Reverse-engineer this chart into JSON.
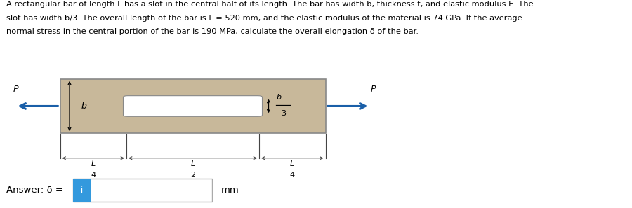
{
  "text_line1": "A rectangular bar of length L has a slot in the central half of its length. The bar has width b, thickness t, and elastic modulus E. The",
  "text_line2": "slot has width b/3. The overall length of the bar is L = 520 mm, and the elastic modulus of the material is 74 GPa. If the average",
  "text_line3": "normal stress in the central portion of the bar is 190 MPa, calculate the overall elongation δ of the bar.",
  "bar_fill_color": "#c8b89a",
  "bar_edge_color": "#888888",
  "slot_fill_color": "#ffffff",
  "arrow_color": "#1a5fa8",
  "dim_color": "#444444",
  "answer_box_color": "#3399dd",
  "answer_text": "Answer: δ = ",
  "mm_text": "mm",
  "bx": 0.095,
  "by": 0.36,
  "bw": 0.42,
  "bh": 0.26
}
